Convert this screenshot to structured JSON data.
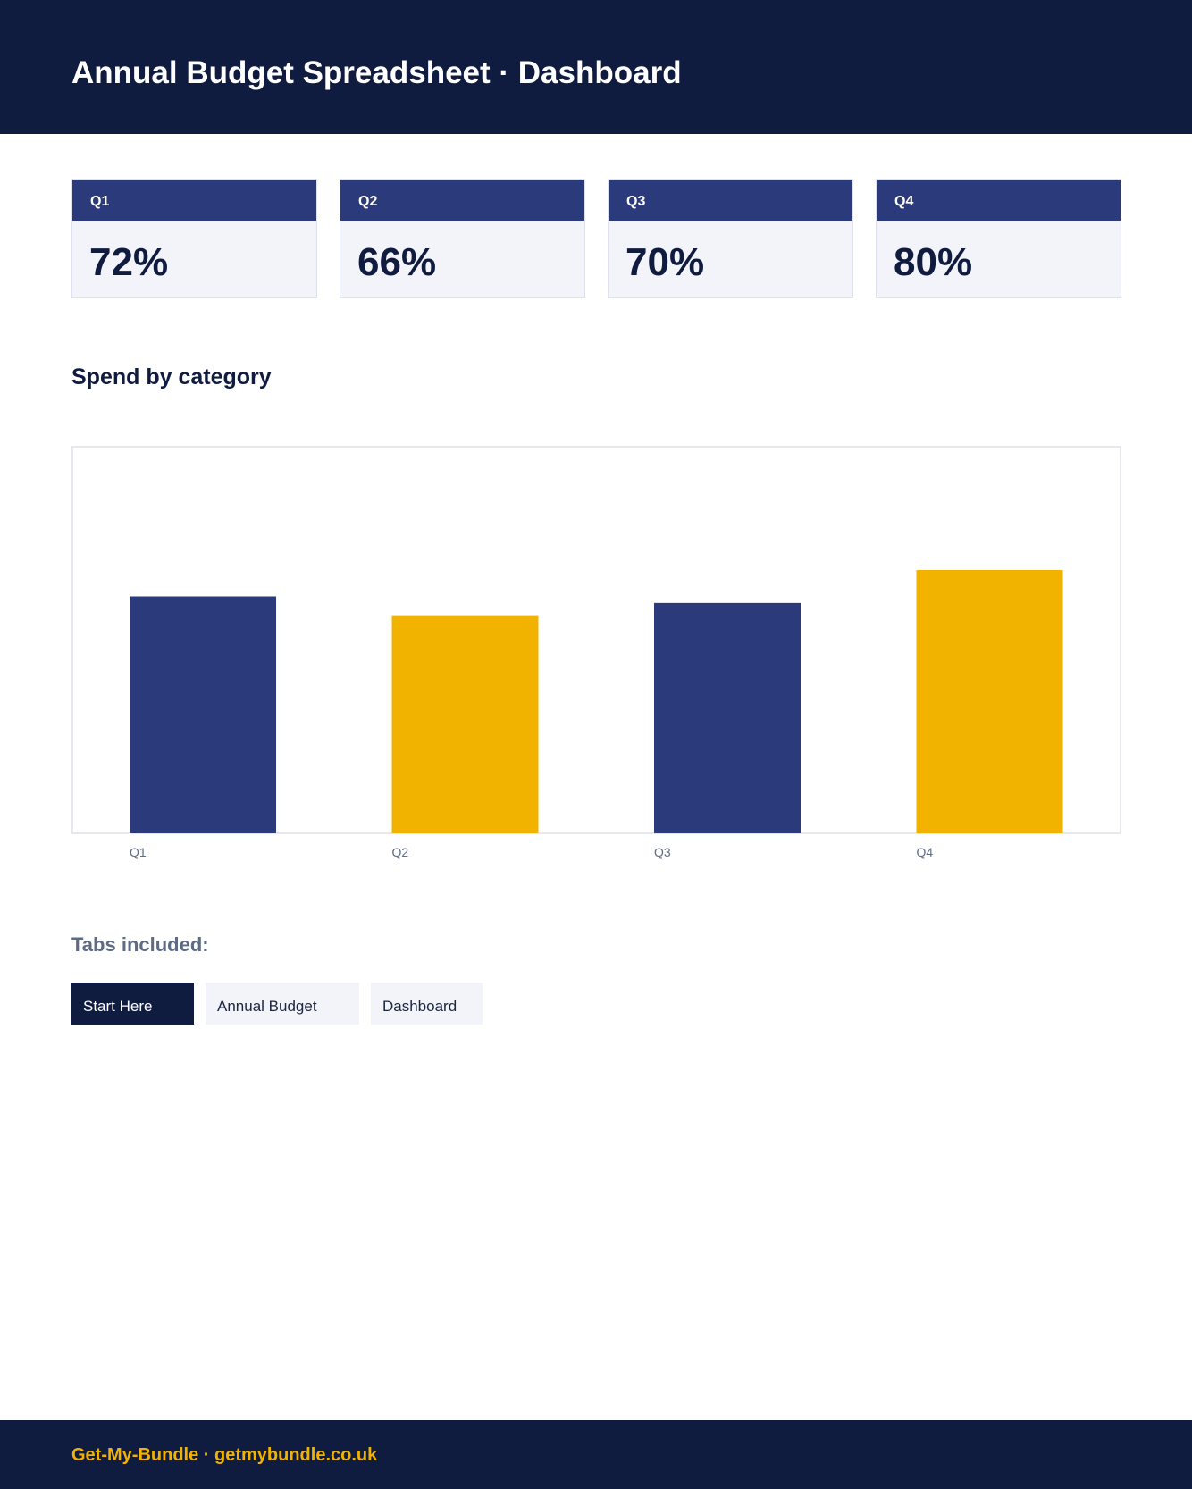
{
  "header": {
    "title": "Annual Budget Spreadsheet · Dashboard"
  },
  "kpis": [
    {
      "label": "Q1",
      "value": "72%"
    },
    {
      "label": "Q2",
      "value": "66%"
    },
    {
      "label": "Q3",
      "value": "70%"
    },
    {
      "label": "Q4",
      "value": "80%"
    }
  ],
  "section": {
    "title": "Spend by category"
  },
  "chart_data": {
    "type": "bar",
    "title": "",
    "xlabel": "",
    "ylabel": "",
    "categories": [
      "Q1",
      "Q2",
      "Q3",
      "Q4"
    ],
    "values": [
      72,
      66,
      70,
      80
    ],
    "ylim": [
      0,
      100
    ],
    "grid": false,
    "colors": [
      "#2b3a7a",
      "#f2b300",
      "#2b3a7a",
      "#f2b300"
    ]
  },
  "tabs": {
    "title": "Tabs included:",
    "items": [
      {
        "label": "Start Here",
        "active": true
      },
      {
        "label": "Annual Budget",
        "active": false
      },
      {
        "label": "Dashboard",
        "active": false
      }
    ]
  },
  "footer": {
    "text": "Get-My-Bundle · getmybundle.co.uk"
  },
  "colors": {
    "navy": "#0f1b3f",
    "accent_blue": "#2b3a7a",
    "accent_gold": "#f2b300"
  }
}
